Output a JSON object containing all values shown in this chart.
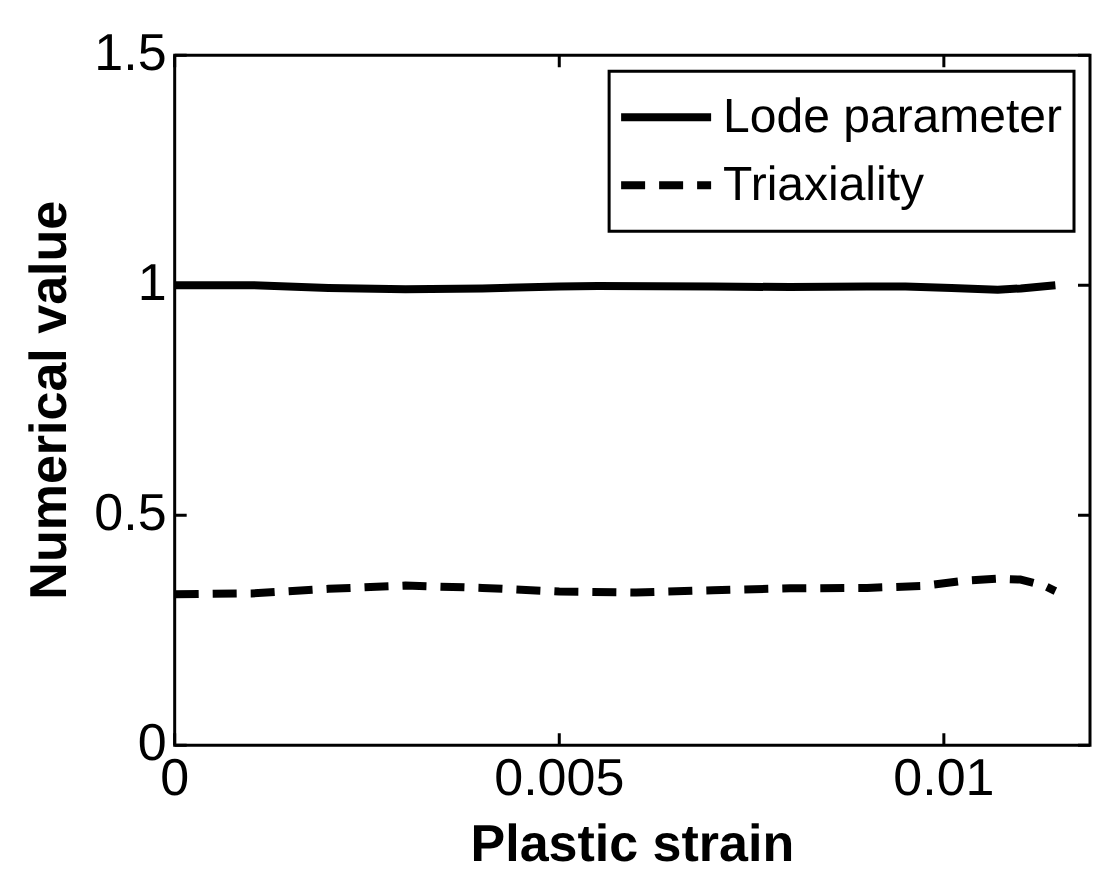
{
  "chart_data": {
    "type": "line",
    "xlabel": "Plastic strain",
    "ylabel": "Numerical value",
    "xlim": [
      0,
      0.0119
    ],
    "xticks": [
      0,
      0.005,
      0.01
    ],
    "ylim": [
      0,
      1.5
    ],
    "yticks": [
      0,
      0.5,
      1,
      1.5
    ],
    "grid": false,
    "legend": "top right",
    "series": [
      {
        "name": "Lode parameter",
        "color": "#000000",
        "line_style": "solid",
        "x": [
          0,
          0.001,
          0.002,
          0.003,
          0.004,
          0.005,
          0.0055,
          0.007,
          0.008,
          0.009,
          0.0095,
          0.0101,
          0.0107,
          0.011,
          0.01145
        ],
        "values": [
          1.0,
          1.0,
          0.994,
          0.991,
          0.993,
          0.997,
          0.998,
          0.997,
          0.996,
          0.997,
          0.997,
          0.994,
          0.99,
          0.993,
          1.0
        ]
      },
      {
        "name": "Triaxiality",
        "color": "#000000",
        "line_style": "dashed",
        "x": [
          0,
          0.001,
          0.002,
          0.003,
          0.004,
          0.005,
          0.006,
          0.007,
          0.008,
          0.009,
          0.0097,
          0.0103,
          0.0107,
          0.011,
          0.0113,
          0.01145
        ],
        "values": [
          0.328,
          0.33,
          0.34,
          0.347,
          0.342,
          0.334,
          0.332,
          0.337,
          0.341,
          0.342,
          0.346,
          0.358,
          0.362,
          0.36,
          0.347,
          0.335
        ]
      }
    ]
  }
}
